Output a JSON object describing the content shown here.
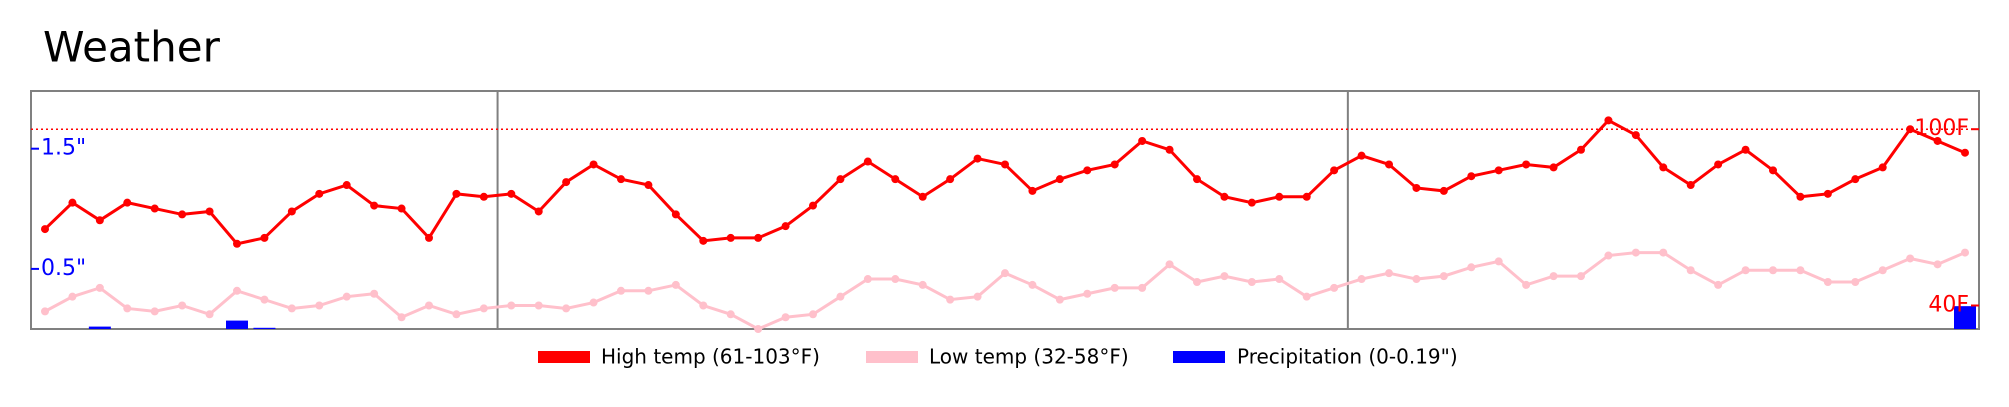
{
  "chart_data": {
    "type": "line",
    "title": "Weather",
    "ylim": [
      32,
      113
    ],
    "yticks": [
      {
        "value": 40,
        "label": "40F"
      },
      {
        "value": 100,
        "label": "100F"
      }
    ],
    "y2lim": [
      0,
      1.98
    ],
    "y2ticks": [
      {
        "value": 0.5,
        "label": "0.5\""
      },
      {
        "value": 1.5,
        "label": "1.5\""
      }
    ],
    "reference_line": 100,
    "month_starts": [
      17,
      48
    ],
    "legend": "bottom",
    "series": [
      {
        "name": "High temp (61-103°F)",
        "color": "#ff0000",
        "type": "line",
        "values": [
          66,
          75,
          69,
          75,
          73,
          71,
          72,
          61,
          63,
          72,
          78,
          81,
          74,
          73,
          63,
          78,
          77,
          78,
          72,
          82,
          88,
          83,
          81,
          71,
          62,
          63,
          63,
          67,
          74,
          83,
          89,
          83,
          77,
          83,
          90,
          88,
          79,
          83,
          86,
          88,
          96,
          93,
          83,
          77,
          75,
          77,
          77,
          86,
          91,
          88,
          80,
          79,
          84,
          86,
          88,
          87,
          93,
          103,
          98,
          87,
          81,
          88,
          93,
          86,
          77,
          78,
          83,
          87,
          100,
          96,
          92
        ]
      },
      {
        "name": "Low temp (32-58°F)",
        "color": "#ffc0cb",
        "type": "line",
        "values": [
          38,
          43,
          46,
          39,
          38,
          40,
          37,
          45,
          42,
          39,
          40,
          43,
          44,
          36,
          40,
          37,
          39,
          40,
          40,
          39,
          41,
          45,
          45,
          47,
          40,
          37,
          32,
          36,
          37,
          43,
          49,
          49,
          47,
          42,
          43,
          51,
          47,
          42,
          44,
          46,
          46,
          54,
          48,
          50,
          48,
          49,
          43,
          46,
          49,
          51,
          49,
          50,
          53,
          55,
          47,
          50,
          50,
          57,
          58,
          58,
          52,
          47,
          52,
          52,
          52,
          48,
          48,
          52,
          56,
          54,
          58
        ]
      },
      {
        "name": "Precipitation (0-0.19\")",
        "color": "#0000ff",
        "type": "bar",
        "axis": "y2",
        "values": [
          0,
          0,
          0.02,
          0,
          0,
          0,
          0,
          0.07,
          0.01,
          0,
          0,
          0,
          0,
          0,
          0,
          0,
          0,
          0,
          0,
          0,
          0,
          0,
          0,
          0,
          0,
          0,
          0,
          0,
          0,
          0,
          0,
          0,
          0,
          0,
          0,
          0,
          0,
          0,
          0,
          0,
          0,
          0,
          0,
          0,
          0,
          0,
          0,
          0,
          0,
          0,
          0,
          0,
          0,
          0,
          0,
          0,
          0,
          0,
          0,
          0,
          0,
          0,
          0,
          0,
          0,
          0,
          0,
          0,
          0,
          0,
          0.19
        ]
      }
    ]
  }
}
